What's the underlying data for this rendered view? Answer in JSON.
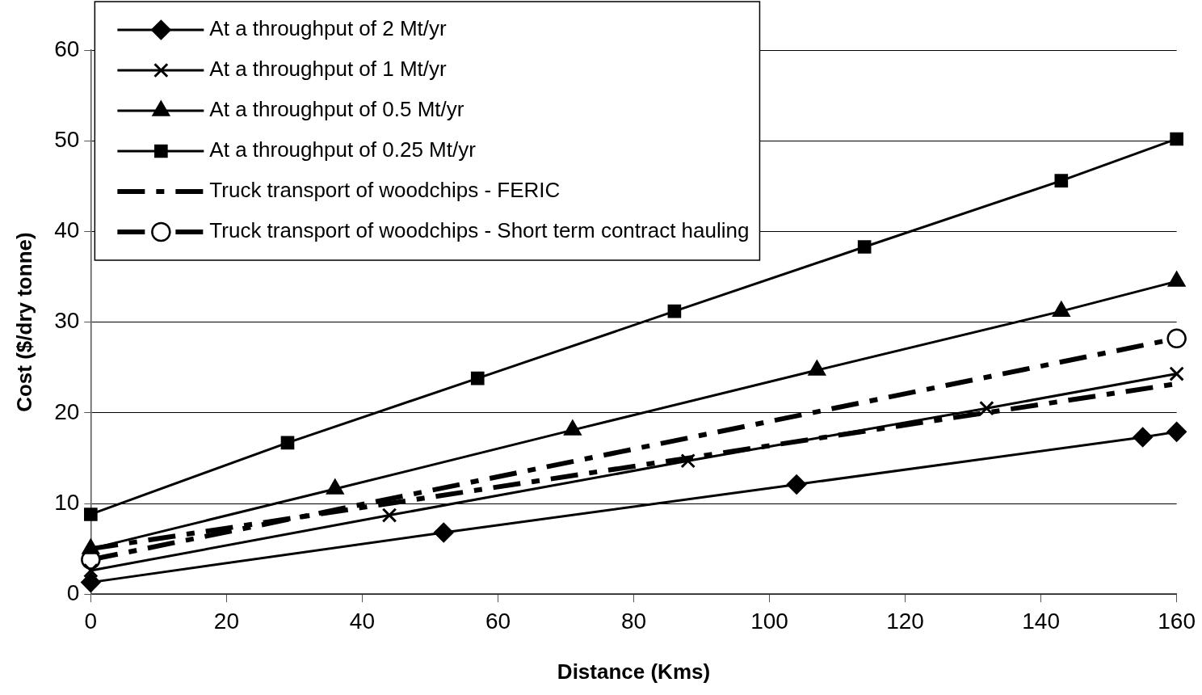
{
  "chart_data": {
    "type": "line",
    "xlabel": "Distance (Kms)",
    "ylabel": "Cost ($/dry tonne)",
    "xlim": [
      0,
      160
    ],
    "xticks": [
      0,
      20,
      40,
      60,
      80,
      100,
      120,
      140,
      160
    ],
    "ylim": [
      0,
      60
    ],
    "yticks": [
      0,
      10,
      20,
      30,
      40,
      50,
      60
    ],
    "grid": "y",
    "legend": "top left",
    "series": [
      {
        "name": "At a throughput of 2 Mt/yr",
        "color": "#000000",
        "marker": "diamond",
        "line_style": "solid",
        "x": [
          0,
          52,
          104,
          155,
          160
        ],
        "values": [
          1.3,
          6.8,
          12.1,
          17.3,
          17.9
        ]
      },
      {
        "name": "At a throughput of 1 Mt/yr",
        "color": "#000000",
        "marker": "cross",
        "line_style": "solid",
        "x": [
          0,
          44,
          88,
          132,
          160
        ],
        "values": [
          2.6,
          8.7,
          14.7,
          20.5,
          24.3
        ]
      },
      {
        "name": "At a throughput of 0.5 Mt/yr",
        "color": "#000000",
        "marker": "triangle",
        "line_style": "solid",
        "x": [
          0,
          36,
          71,
          107,
          143,
          160
        ],
        "values": [
          5.0,
          11.6,
          18.1,
          24.7,
          31.2,
          34.5
        ]
      },
      {
        "name": "At a throughput of 0.25 Mt/yr",
        "color": "#000000",
        "marker": "square",
        "line_style": "solid",
        "x": [
          0,
          29,
          57,
          86,
          114,
          143,
          160
        ],
        "values": [
          8.8,
          16.7,
          23.8,
          31.2,
          38.3,
          45.6,
          50.2
        ]
      },
      {
        "name": "Truck transport of woodchips - FERIC",
        "color": "#000000",
        "marker": "none",
        "line_style": "dashed",
        "x": [
          0,
          160
        ],
        "values": [
          5.0,
          23.2
        ]
      },
      {
        "name": "Truck transport of woodchips - Short term contract hauling",
        "color": "#000000",
        "marker": "circle",
        "line_style": "dashed",
        "x": [
          0,
          160
        ],
        "values": [
          3.8,
          28.2
        ]
      }
    ]
  }
}
